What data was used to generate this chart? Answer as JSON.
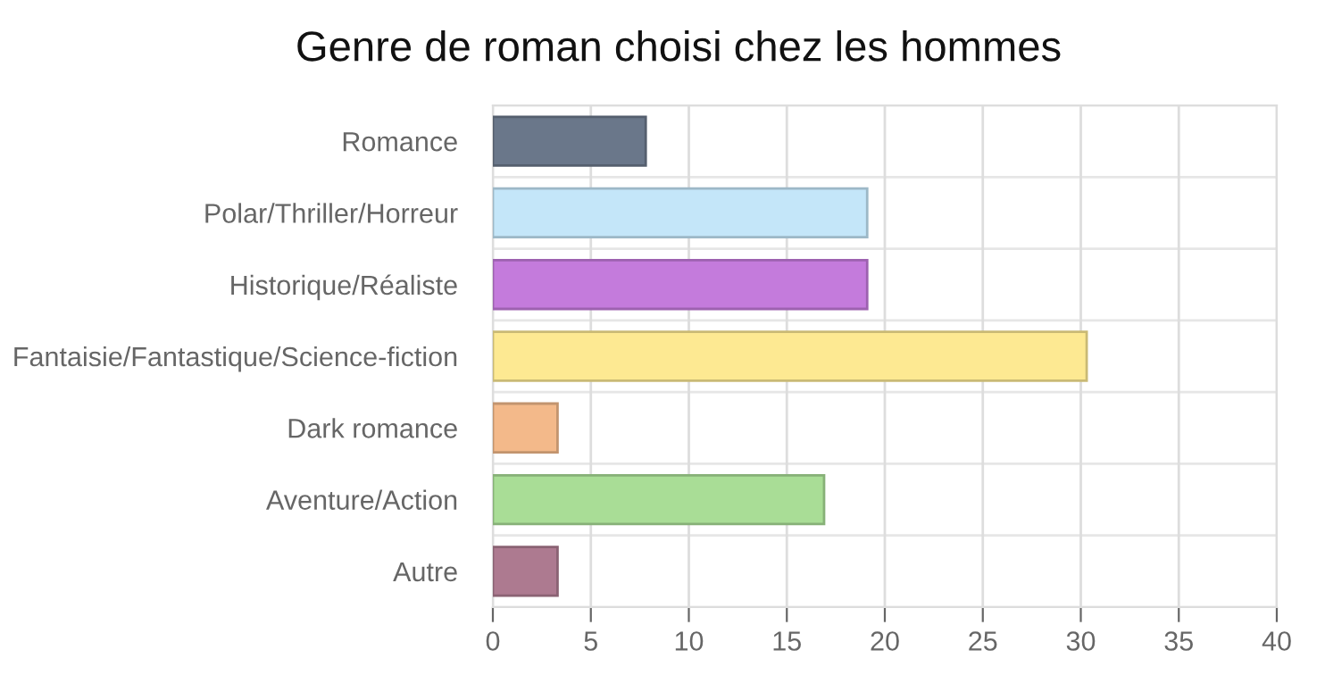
{
  "chart_data": {
    "type": "bar",
    "orientation": "horizontal",
    "title": "Genre de roman choisi chez les hommes",
    "categories": [
      "Romance",
      "Polar/Thriller/Horreur",
      "Historique/Réaliste",
      "Fantaisie/Fantastique/Science-fiction",
      "Dark romance",
      "Aventure/Action",
      "Autre"
    ],
    "values": [
      7.8,
      19.1,
      19.1,
      30.3,
      3.3,
      16.9,
      3.3
    ],
    "colors": [
      "#6a778a",
      "#c4e6f9",
      "#c47bdc",
      "#fde992",
      "#f3b98a",
      "#a9dd96",
      "#ad7a90"
    ],
    "xlim": [
      0,
      40
    ],
    "xticks": [
      0,
      5,
      10,
      15,
      20,
      25,
      30,
      35,
      40
    ],
    "grid": true,
    "legend": false
  }
}
